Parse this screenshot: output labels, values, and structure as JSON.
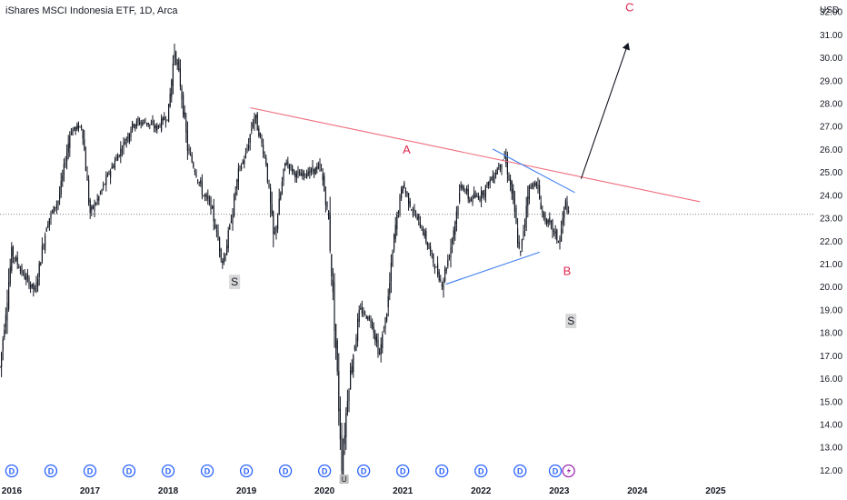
{
  "header": {
    "title": "iShares MSCI Indonesia ETF, 1D, Arca"
  },
  "axis": {
    "currency": "USD"
  },
  "colors": {
    "background": "#ffffff",
    "candles": "#131722",
    "resistance_line": "#f06a7c",
    "triangle_lines": "#3d7ef0",
    "wave_labels": "#e0284f",
    "dividend_icon": "#2962ff",
    "earnings_icon": "#9c27b0",
    "price_line": "#555555"
  },
  "annotations": {
    "wave_a": "A",
    "wave_b": "B",
    "wave_c": "C",
    "split_labels": [
      "S",
      "S"
    ]
  },
  "events": {
    "dividend_symbol": "D",
    "dividend_count": 15,
    "earnings_icon": "lightning-bolt-icon",
    "marker_2020": "U"
  },
  "chart_data": {
    "type": "candlestick",
    "title": "iShares MSCI Indonesia ETF, 1D, Arca",
    "ylabel": "USD",
    "y_ticks": [
      "12.00",
      "13.00",
      "14.00",
      "15.00",
      "16.00",
      "17.00",
      "18.00",
      "19.00",
      "20.00",
      "21.00",
      "22.00",
      "23.00",
      "24.00",
      "25.00",
      "26.00",
      "27.00",
      "28.00",
      "29.00",
      "30.00",
      "31.00",
      "32.00"
    ],
    "x_ticks": [
      "2016",
      "2017",
      "2018",
      "2019",
      "2020",
      "2021",
      "2022",
      "2023",
      "2024",
      "2025"
    ],
    "ylim": [
      11.8,
      32.5
    ],
    "xlim": [
      2015.85,
      2026.25
    ],
    "last_price": 23.15,
    "price_path": [
      [
        2015.85,
        16.5
      ],
      [
        2016.0,
        21.5
      ],
      [
        2016.15,
        20.5
      ],
      [
        2016.3,
        19.8
      ],
      [
        2016.45,
        22.8
      ],
      [
        2016.6,
        23.8
      ],
      [
        2016.75,
        26.8
      ],
      [
        2016.9,
        27.0
      ],
      [
        2017.0,
        23.2
      ],
      [
        2017.1,
        23.8
      ],
      [
        2017.25,
        25.0
      ],
      [
        2017.4,
        26.0
      ],
      [
        2017.55,
        27.1
      ],
      [
        2017.7,
        27.2
      ],
      [
        2017.85,
        26.9
      ],
      [
        2018.0,
        27.5
      ],
      [
        2018.08,
        30.3
      ],
      [
        2018.15,
        29.0
      ],
      [
        2018.25,
        26.0
      ],
      [
        2018.35,
        25.0
      ],
      [
        2018.45,
        24.0
      ],
      [
        2018.55,
        23.5
      ],
      [
        2018.7,
        21.0
      ],
      [
        2018.8,
        22.8
      ],
      [
        2018.9,
        25.0
      ],
      [
        2019.0,
        25.8
      ],
      [
        2019.1,
        27.5
      ],
      [
        2019.25,
        25.5
      ],
      [
        2019.35,
        22.0
      ],
      [
        2019.5,
        25.5
      ],
      [
        2019.65,
        24.8
      ],
      [
        2019.8,
        25.0
      ],
      [
        2019.95,
        25.2
      ],
      [
        2020.05,
        23.0
      ],
      [
        2020.15,
        17.0
      ],
      [
        2020.22,
        12.2
      ],
      [
        2020.3,
        15.5
      ],
      [
        2020.45,
        19.0
      ],
      [
        2020.6,
        18.5
      ],
      [
        2020.7,
        17.0
      ],
      [
        2020.8,
        19.0
      ],
      [
        2020.9,
        22.5
      ],
      [
        2021.0,
        24.5
      ],
      [
        2021.1,
        23.5
      ],
      [
        2021.25,
        22.5
      ],
      [
        2021.4,
        21.0
      ],
      [
        2021.5,
        20.1
      ],
      [
        2021.6,
        21.5
      ],
      [
        2021.75,
        24.5
      ],
      [
        2021.85,
        23.8
      ],
      [
        2022.0,
        24.0
      ],
      [
        2022.15,
        24.8
      ],
      [
        2022.3,
        25.7
      ],
      [
        2022.4,
        24.0
      ],
      [
        2022.5,
        21.2
      ],
      [
        2022.6,
        24.2
      ],
      [
        2022.7,
        24.6
      ],
      [
        2022.8,
        23.0
      ],
      [
        2022.9,
        22.6
      ],
      [
        2023.0,
        21.9
      ],
      [
        2023.08,
        23.7
      ],
      [
        2023.12,
        23.15
      ]
    ],
    "trendlines": [
      {
        "name": "resistance",
        "from": [
          2019.05,
          27.8
        ],
        "to": [
          2024.8,
          23.7
        ]
      },
      {
        "name": "triangle-upper",
        "from": [
          2022.15,
          26.0
        ],
        "to": [
          2023.2,
          24.1
        ]
      },
      {
        "name": "triangle-lower",
        "from": [
          2021.55,
          20.1
        ],
        "to": [
          2022.75,
          21.5
        ]
      },
      {
        "name": "projection-arrow",
        "from": [
          2023.28,
          24.7
        ],
        "to": [
          2023.88,
          30.6
        ]
      }
    ],
    "wave_points": [
      {
        "label": "A",
        "x": 2021.05,
        "y": 25.8
      },
      {
        "label": "B",
        "x": 2023.1,
        "y": 20.5
      },
      {
        "label": "C",
        "x": 2023.9,
        "y": 32.0
      }
    ],
    "split_points": [
      {
        "label": "S",
        "x": 2018.85,
        "y": 20.2
      },
      {
        "label": "S",
        "x": 2023.15,
        "y": 18.5
      }
    ],
    "dividend_x": [
      2016.0,
      2016.5,
      2017.0,
      2017.5,
      2018.0,
      2018.5,
      2019.0,
      2019.5,
      2020.0,
      2020.5,
      2021.0,
      2021.5,
      2022.0,
      2022.5,
      2022.95
    ],
    "earnings_x": [
      2023.12
    ],
    "split_marker_x": 2020.25
  }
}
